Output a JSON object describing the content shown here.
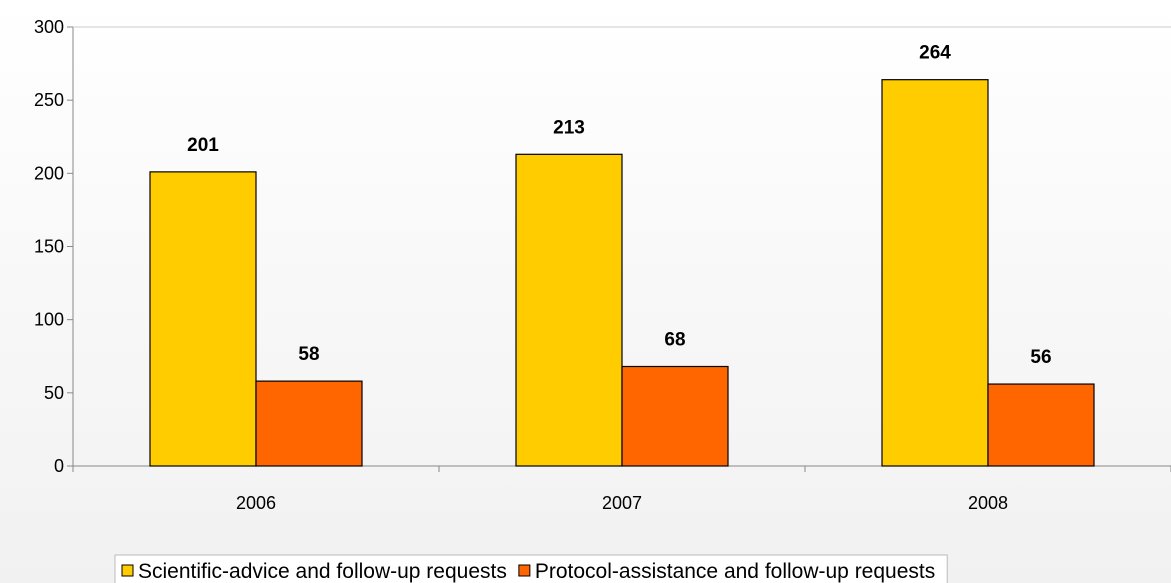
{
  "chart_data": {
    "type": "bar",
    "categories": [
      "2006",
      "2007",
      "2008"
    ],
    "series": [
      {
        "name": "Scientific-advice and follow-up requests",
        "values": [
          201,
          213,
          264
        ],
        "color": "#ffcc00"
      },
      {
        "name": "Protocol-assistance and follow-up requests",
        "values": [
          58,
          68,
          56
        ],
        "color": "#ff6600"
      }
    ],
    "yticks": [
      "0",
      "50",
      "100",
      "150",
      "200",
      "250",
      "300"
    ],
    "ylim": [
      0,
      300
    ],
    "grid": false,
    "legend_position": "bottom-center",
    "title": "",
    "xlabel": "",
    "ylabel": ""
  }
}
